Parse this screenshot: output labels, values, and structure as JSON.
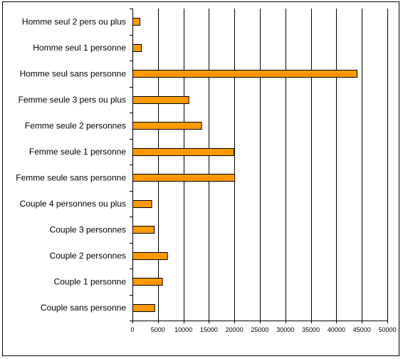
{
  "chart_data": {
    "type": "bar",
    "orientation": "horizontal",
    "categories": [
      "Homme seul  2 pers ou plus",
      "Homme seul 1 personne",
      "Homme seul sans personne",
      "Femme seule 3 pers ou plus",
      "Femme seule 2 personnes",
      "Femme seule 1 personne",
      "Femme seule sans personne",
      "Couple 4 personnes ou plus",
      "Couple 3 personnes",
      "Couple 2 personnes",
      "Couple 1 personne",
      "Couple sans personne"
    ],
    "values": [
      1400,
      1700,
      44000,
      11000,
      13500,
      19800,
      20000,
      3700,
      4200,
      6800,
      5800,
      4300
    ],
    "xlim": [
      0,
      50000
    ],
    "xticks": [
      0,
      5000,
      10000,
      15000,
      20000,
      25000,
      30000,
      35000,
      40000,
      45000,
      50000
    ],
    "grid": "vertical",
    "bar_color": "#FF9900",
    "title": "",
    "xlabel": "",
    "ylabel": ""
  }
}
